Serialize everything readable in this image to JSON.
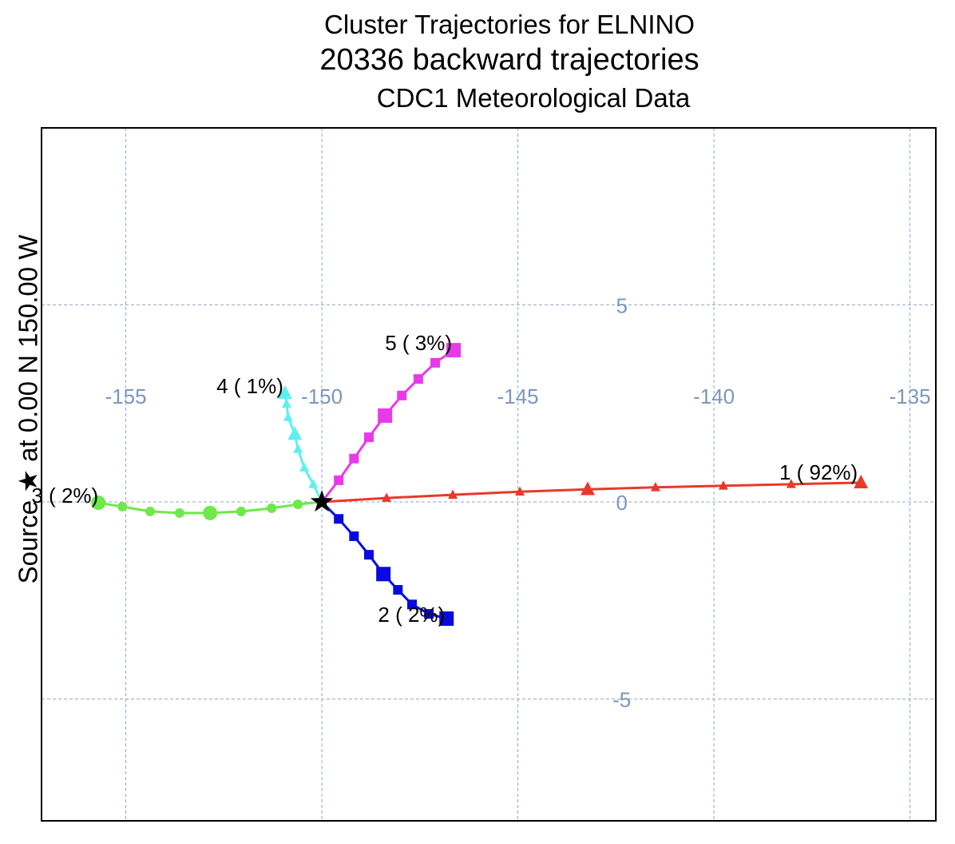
{
  "chart_data": {
    "type": "line",
    "title": "Cluster Trajectories for ELNINO",
    "subtitle": "20336 backward trajectories",
    "subtitle2": "CDC1 Meteorological Data",
    "side_label": "Source ★ at    0.00 N  150.00 W",
    "xlim": [
      -157.15,
      -134.34
    ],
    "ylim": [
      -8.09,
      9.49
    ],
    "x_ticks": [
      -155,
      -150,
      -145,
      -140,
      -135
    ],
    "y_ticks": [
      5,
      0,
      -5
    ],
    "grid": true,
    "source": {
      "lon": -150,
      "lat": 0
    },
    "series": [
      {
        "name": "1 ( 92%)",
        "color": "#e8392b",
        "marker": "triangle",
        "lon": [
          -150,
          -148.35,
          -146.66,
          -144.95,
          -143.22,
          -141.49,
          -139.76,
          -138.03,
          -136.25
        ],
        "lat": [
          0,
          0.1,
          0.18,
          0.26,
          0.32,
          0.37,
          0.41,
          0.45,
          0.49
        ]
      },
      {
        "name": "2 (  2%)",
        "color": "#0a0ae0",
        "marker": "square",
        "lon": [
          -150,
          -149.57,
          -149.18,
          -148.8,
          -148.43,
          -148.06,
          -147.7,
          -147.27,
          -146.82
        ],
        "lat": [
          0,
          -0.43,
          -0.87,
          -1.34,
          -1.83,
          -2.23,
          -2.6,
          -2.84,
          -2.96
        ]
      },
      {
        "name": "3 (  2%)",
        "color": "#6ee84a",
        "marker": "circle",
        "lon": [
          -150,
          -150.61,
          -151.28,
          -152.06,
          -152.85,
          -153.63,
          -154.38,
          -155.09,
          -155.7
        ],
        "lat": [
          0,
          -0.06,
          -0.16,
          -0.24,
          -0.28,
          -0.28,
          -0.24,
          -0.12,
          -0.02
        ]
      },
      {
        "name": "4 (  1%)",
        "color": "#5ef0f0",
        "marker": "triangle",
        "lon": [
          -150,
          -150.22,
          -150.45,
          -150.61,
          -150.69,
          -150.86,
          -150.9,
          -150.94
        ],
        "lat": [
          0,
          0.45,
          0.87,
          1.34,
          1.72,
          2.15,
          2.49,
          2.76
        ]
      },
      {
        "name": "5 (  3%)",
        "color": "#e83ae8",
        "marker": "square",
        "lon": [
          -150,
          -149.57,
          -149.18,
          -148.8,
          -148.39,
          -147.96,
          -147.54,
          -147.11,
          -146.64
        ],
        "lat": [
          0,
          0.55,
          1.1,
          1.64,
          2.19,
          2.7,
          3.12,
          3.53,
          3.85
        ]
      }
    ]
  }
}
